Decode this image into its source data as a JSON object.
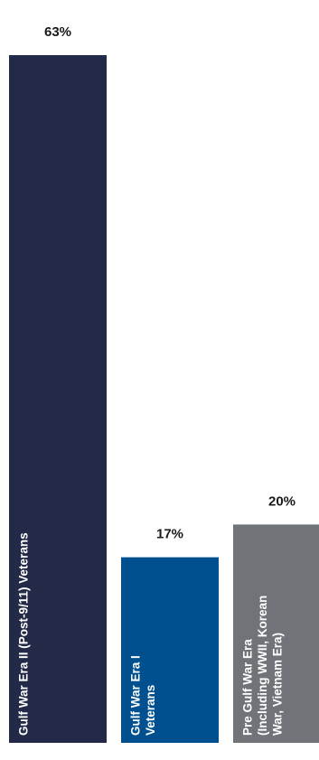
{
  "chart_data": {
    "type": "bar",
    "categories": [
      [
        "Gulf War Era II (Post-9/11) Veterans"
      ],
      [
        "Gulf War Era I",
        "Veterans"
      ],
      [
        "Pre Gulf War Era",
        "(Including WWII, Korean",
        "War, Vietnam Era)"
      ]
    ],
    "values": [
      63,
      17,
      20
    ],
    "value_labels": [
      "63%",
      "17%",
      "20%"
    ],
    "colors": [
      "#232a48",
      "#00508f",
      "#707478"
    ],
    "label_color": "#ffffff",
    "ylim": [
      0,
      63
    ],
    "title": "",
    "xlabel": "",
    "ylabel": "",
    "grid": false,
    "legend": "none"
  }
}
